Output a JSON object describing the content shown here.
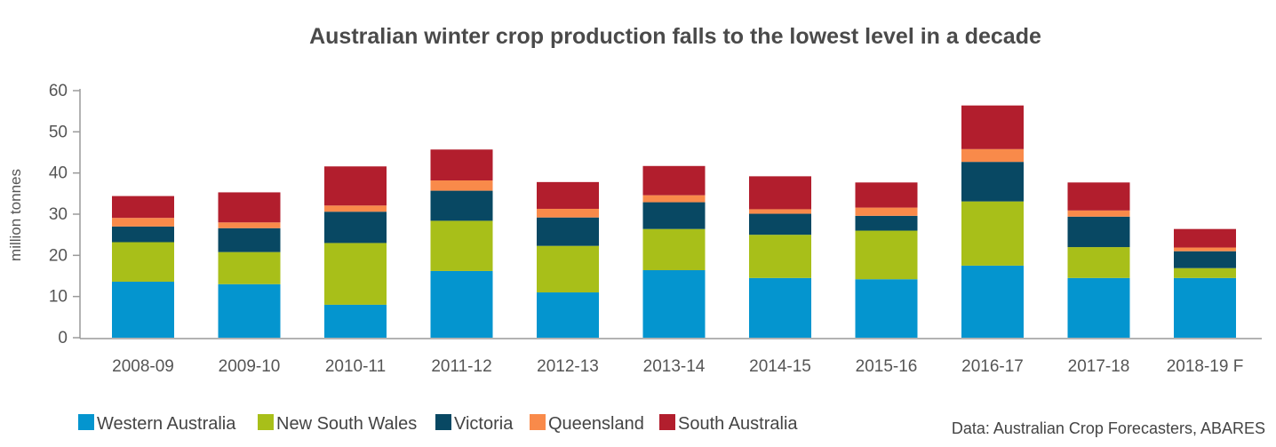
{
  "chart_data": {
    "type": "bar",
    "stacked": true,
    "title": "Australian winter crop production falls to the lowest level in a decade",
    "ylabel": "million tonnes",
    "xlabel": "",
    "ylim": [
      0,
      60
    ],
    "yticks": [
      0,
      10,
      20,
      30,
      40,
      50,
      60
    ],
    "grid": false,
    "legend_position": "bottom-left",
    "source": "Data: Australian Crop Forecasters, ABARES",
    "categories": [
      "2008-09",
      "2009-10",
      "2010-11",
      "2011-12",
      "2012-13",
      "2013-14",
      "2014-15",
      "2015-16",
      "2016-17",
      "2017-18",
      "2018-19 F"
    ],
    "series": [
      {
        "name": "Western Australia",
        "color": "#0495cf",
        "values": [
          13.6,
          13.0,
          8.0,
          16.2,
          11.0,
          16.4,
          14.5,
          14.2,
          17.5,
          14.5,
          14.5
        ]
      },
      {
        "name": "New South Wales",
        "color": "#a8bf19",
        "values": [
          9.6,
          7.8,
          15.0,
          12.2,
          11.3,
          10.0,
          10.5,
          11.8,
          15.6,
          7.5,
          2.4
        ]
      },
      {
        "name": "Victoria",
        "color": "#084863",
        "values": [
          3.8,
          5.8,
          7.6,
          7.3,
          6.9,
          6.5,
          5.1,
          3.6,
          9.6,
          7.4,
          4.1
        ]
      },
      {
        "name": "Queensland",
        "color": "#f98a4a",
        "values": [
          2.1,
          1.4,
          1.5,
          2.5,
          2.1,
          1.7,
          1.1,
          2.0,
          3.1,
          1.5,
          0.9
        ]
      },
      {
        "name": "South Australia",
        "color": "#b21e2d",
        "values": [
          5.3,
          7.3,
          9.5,
          7.5,
          6.5,
          7.1,
          8.0,
          6.1,
          10.6,
          6.8,
          4.5
        ]
      }
    ]
  }
}
